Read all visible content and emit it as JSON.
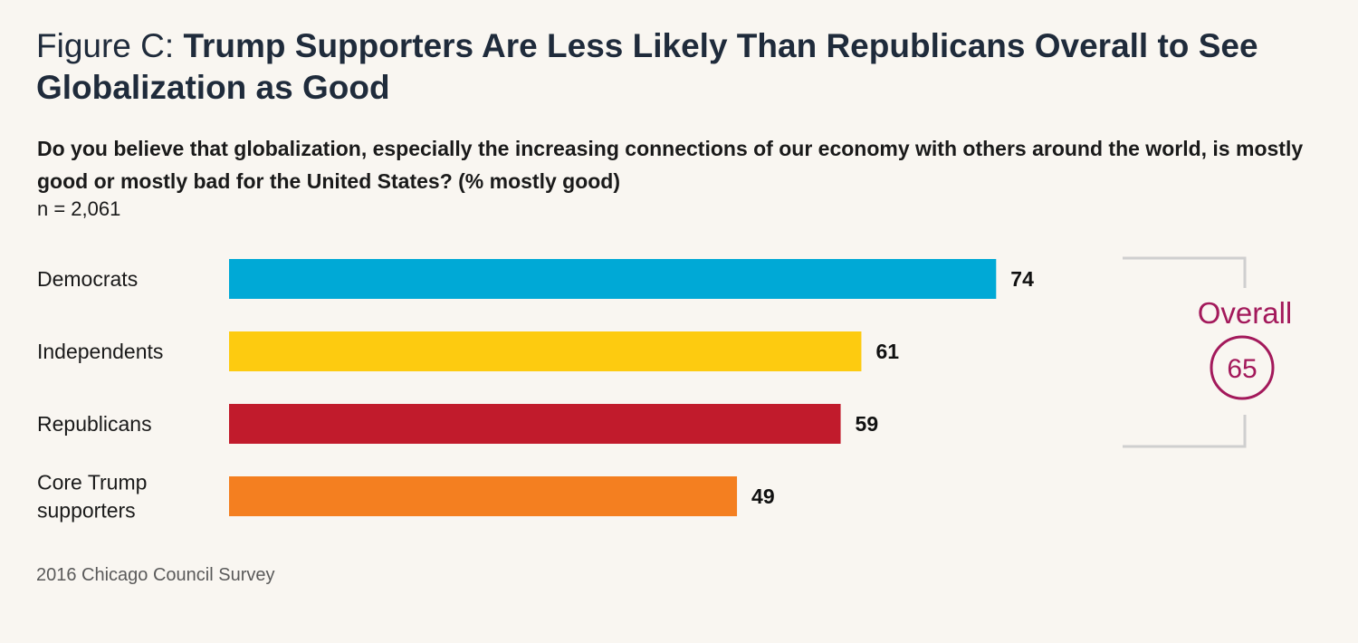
{
  "header": {
    "title_prefix": "Figure C:",
    "title_main": "Trump Supporters Are Less Likely Than Republicans Overall to See Globalization as Good",
    "question": "Do you believe that globalization, especially the increasing connections of our economy with others around the world, is mostly good or mostly bad for the United States? (% mostly good)",
    "sample": "n = 2,061"
  },
  "footer": {
    "source": "2016 Chicago Council Survey"
  },
  "overall": {
    "label": "Overall",
    "value": 65,
    "color": "#a3195b"
  },
  "chart_data": {
    "type": "bar",
    "orientation": "horizontal",
    "title": "Trump Supporters Are Less Likely Than Republicans Overall to See Globalization as Good",
    "xlabel": "",
    "ylabel": "",
    "xlim": [
      0,
      100
    ],
    "grid": false,
    "categories": [
      {
        "label_lines": [
          "Democrats"
        ],
        "value": 74,
        "color": "#00a9d6"
      },
      {
        "label_lines": [
          "Independents"
        ],
        "value": 61,
        "color": "#fdcb10"
      },
      {
        "label_lines": [
          "Republicans"
        ],
        "value": 59,
        "color": "#c11b2c"
      },
      {
        "label_lines": [
          "Core Trump",
          "supporters"
        ],
        "value": 49,
        "color": "#f47f20"
      }
    ]
  }
}
